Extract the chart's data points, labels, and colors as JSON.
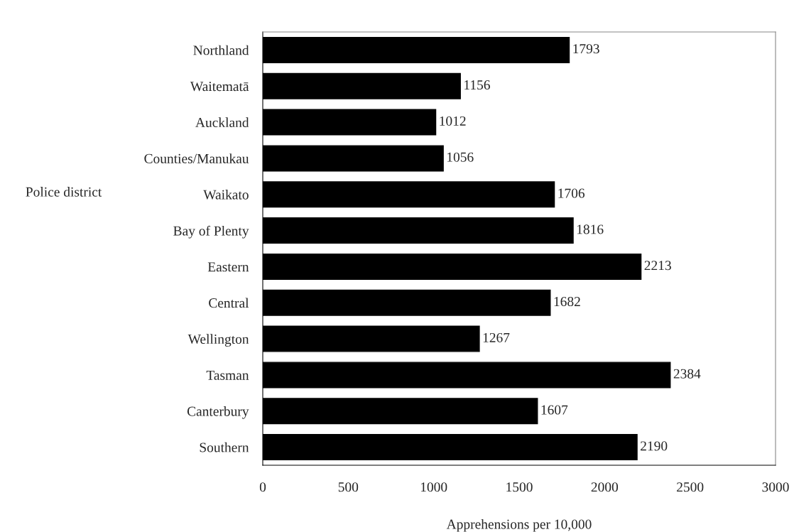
{
  "chart_data": {
    "type": "bar",
    "orientation": "horizontal",
    "xlabel": "Apprehensions per 10,000",
    "ylabel": "Police district",
    "categories": [
      "Northland",
      "Waitematā",
      "Auckland",
      "Counties/Manukau",
      "Waikato",
      "Bay of Plenty",
      "Eastern",
      "Central",
      "Wellington",
      "Tasman",
      "Canterbury",
      "Southern"
    ],
    "values": [
      1793,
      1156,
      1012,
      1056,
      1706,
      1816,
      2213,
      1682,
      1267,
      2384,
      1607,
      2190
    ],
    "color": "#000000",
    "xlim": [
      0,
      3000
    ],
    "xticks": [
      0,
      500,
      1000,
      1500,
      2000,
      2500,
      3000
    ],
    "data_labels": true,
    "grid": false
  }
}
